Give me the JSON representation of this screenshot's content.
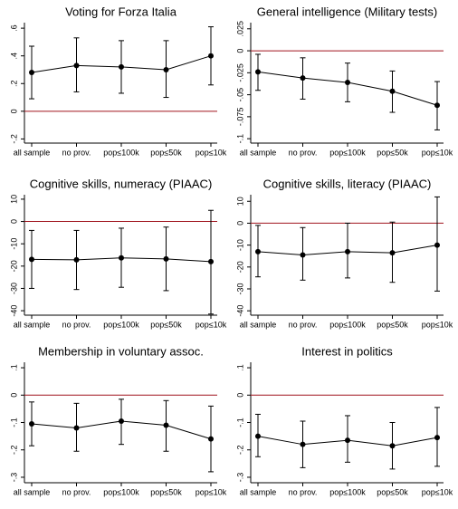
{
  "chart_data": [
    {
      "type": "errorbar",
      "title": "Voting for Forza Italia",
      "categories": [
        "all sample",
        "no prov.",
        "pop≤100k",
        "pop≤50k",
        "pop≤10k"
      ],
      "series": [
        {
          "color": "#000000",
          "values": [
            0.28,
            0.33,
            0.32,
            0.3,
            0.4
          ],
          "ci_low": [
            0.09,
            0.14,
            0.13,
            0.1,
            0.19
          ],
          "ci_high": [
            0.47,
            0.53,
            0.51,
            0.51,
            0.61
          ]
        }
      ],
      "ylim": [
        -0.23,
        0.64
      ],
      "yticks": [
        {
          "value": -0.2,
          "label": "-.2"
        },
        0,
        {
          "value": 0.2,
          "label": ".2"
        },
        {
          "value": 0.4,
          "label": ".4"
        },
        {
          "value": 0.6,
          "label": ".6"
        }
      ],
      "hline": {
        "value": 0,
        "color": "#a0141e"
      }
    },
    {
      "type": "errorbar",
      "title": "General intelligence (Military tests)",
      "categories": [
        "all sample",
        "no prov.",
        "pop≤100k",
        "pop≤50k",
        "pop≤10k"
      ],
      "series": [
        {
          "color": "#000000",
          "values": [
            -0.024,
            -0.031,
            -0.036,
            -0.046,
            -0.062
          ],
          "ci_low": [
            -0.045,
            -0.055,
            -0.058,
            -0.07,
            -0.09
          ],
          "ci_high": [
            -0.004,
            -0.008,
            -0.014,
            -0.023,
            -0.035
          ]
        }
      ],
      "ylim": [
        -0.105,
        0.032
      ],
      "yticks": [
        {
          "value": -0.1,
          "label": "-.1"
        },
        {
          "value": -0.075,
          "label": "-.075"
        },
        {
          "value": -0.05,
          "label": "-.05"
        },
        {
          "value": -0.025,
          "label": "-.025"
        },
        0,
        {
          "value": 0.025,
          "label": ".025"
        }
      ],
      "hline": {
        "value": 0,
        "color": "#a0141e"
      }
    },
    {
      "type": "errorbar",
      "title": "Cognitive skills, numeracy (PIAAC)",
      "categories": [
        "all sample",
        "no prov.",
        "pop≤100k",
        "pop≤50k",
        "pop≤10k"
      ],
      "series": [
        {
          "color": "#000000",
          "values": [
            -17,
            -17.2,
            -16.3,
            -16.8,
            -18
          ],
          "ci_low": [
            -30,
            -30.5,
            -29.5,
            -31,
            -41.5
          ],
          "ci_high": [
            -4,
            -4,
            -3,
            -2.5,
            5
          ]
        }
      ],
      "ylim": [
        -42,
        12
      ],
      "yticks": [
        -40,
        -30,
        -20,
        -10,
        0,
        10
      ],
      "hline": {
        "value": 0,
        "color": "#a0141e"
      }
    },
    {
      "type": "errorbar",
      "title": "Cognitive skills, literacy (PIAAC)",
      "categories": [
        "all sample",
        "no prov.",
        "pop≤100k",
        "pop≤50k",
        "pop≤10k"
      ],
      "series": [
        {
          "color": "#000000",
          "values": [
            -13,
            -14.5,
            -13,
            -13.5,
            -10
          ],
          "ci_low": [
            -24.5,
            -26,
            -25,
            -27,
            -31
          ],
          "ci_high": [
            -1,
            -2,
            0,
            0.5,
            12
          ]
        }
      ],
      "ylim": [
        -42,
        13
      ],
      "yticks": [
        -40,
        -30,
        -20,
        -10,
        0,
        10
      ],
      "hline": {
        "value": 0,
        "color": "#a0141e"
      }
    },
    {
      "type": "errorbar",
      "title": "Membership in voluntary assoc.",
      "categories": [
        "all sample",
        "no prov.",
        "pop≤100k",
        "pop≤50k",
        "pop≤10k"
      ],
      "series": [
        {
          "color": "#000000",
          "values": [
            -0.105,
            -0.12,
            -0.095,
            -0.11,
            -0.16
          ],
          "ci_low": [
            -0.185,
            -0.205,
            -0.18,
            -0.205,
            -0.28
          ],
          "ci_high": [
            -0.025,
            -0.03,
            -0.015,
            -0.02,
            -0.04
          ]
        }
      ],
      "ylim": [
        -0.32,
        0.12
      ],
      "yticks": [
        {
          "value": -0.3,
          "label": "-.3"
        },
        {
          "value": -0.2,
          "label": "-.2"
        },
        {
          "value": -0.1,
          "label": "-.1"
        },
        0,
        {
          "value": 0.1,
          "label": ".1"
        }
      ],
      "hline": {
        "value": 0,
        "color": "#a0141e"
      }
    },
    {
      "type": "errorbar",
      "title": "Interest in politics",
      "categories": [
        "all sample",
        "no prov.",
        "pop≤100k",
        "pop≤50k",
        "pop≤10k"
      ],
      "series": [
        {
          "color": "#000000",
          "values": [
            -0.15,
            -0.18,
            -0.165,
            -0.185,
            -0.155
          ],
          "ci_low": [
            -0.225,
            -0.265,
            -0.245,
            -0.27,
            -0.26
          ],
          "ci_high": [
            -0.07,
            -0.095,
            -0.075,
            -0.1,
            -0.045
          ]
        }
      ],
      "ylim": [
        -0.32,
        0.12
      ],
      "yticks": [
        {
          "value": -0.3,
          "label": "-.3"
        },
        {
          "value": -0.2,
          "label": "-.2"
        },
        {
          "value": -0.1,
          "label": "-.1"
        },
        0,
        {
          "value": 0.1,
          "label": ".1"
        }
      ],
      "hline": {
        "value": 0,
        "color": "#a0141e"
      }
    }
  ]
}
